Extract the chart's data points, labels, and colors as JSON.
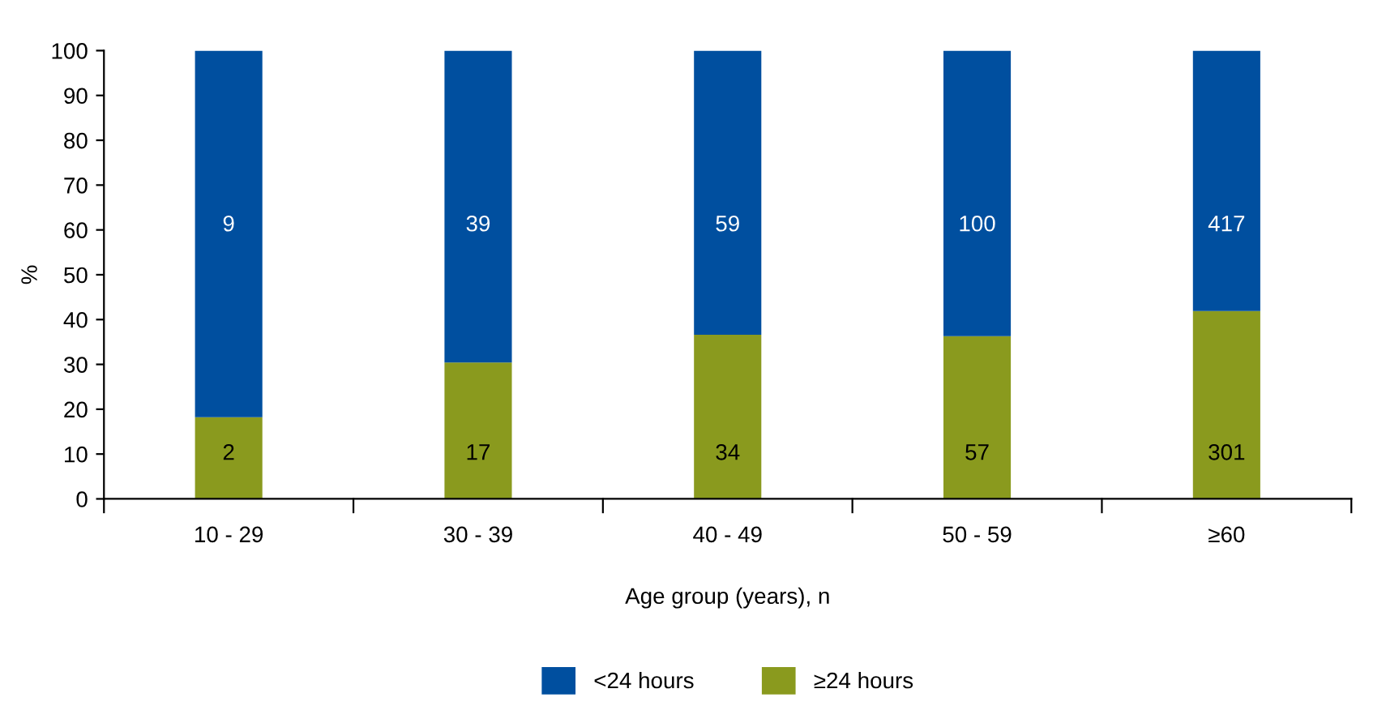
{
  "chart_data": {
    "type": "bar",
    "stacked": true,
    "xlabel": "Age group (years), n",
    "ylabel": "%",
    "categories": [
      "10 - 29",
      "30 - 39",
      "40 - 49",
      "50 - 59",
      "≥60"
    ],
    "series": [
      {
        "name": "≥24 hours",
        "color": "#8a9a1e",
        "values": [
          18.2,
          30.4,
          36.6,
          36.3,
          41.9
        ]
      },
      {
        "name": "<24 hours",
        "color": "#004f9f",
        "values": [
          81.8,
          69.6,
          63.4,
          63.7,
          58.1
        ]
      }
    ],
    "annotations": [
      "2",
      "17",
      "34",
      "57",
      "301",
      "9",
      "39",
      "59",
      "100",
      "417"
    ],
    "ylim": [
      0,
      100
    ],
    "yticks": [
      0,
      10,
      20,
      30,
      40,
      50,
      60,
      70,
      80,
      90,
      100
    ],
    "grid": false,
    "legend": "bottom"
  }
}
